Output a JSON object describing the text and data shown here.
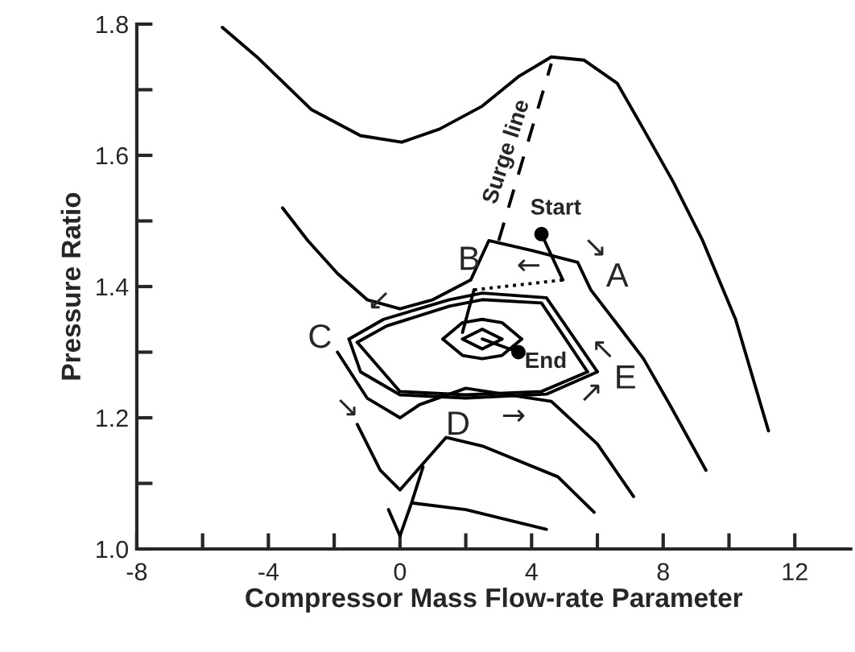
{
  "chart_data": {
    "type": "line",
    "xlabel": "Compressor Mass Flow-rate Parameter",
    "ylabel": "Pressure Ratio",
    "xlim": [
      -8,
      13.7
    ],
    "ylim": [
      1.0,
      1.8
    ],
    "xticks": [
      -8,
      {
        "value": -6,
        "label": null
      },
      -4,
      {
        "value": -2,
        "label": null
      },
      0,
      {
        "value": 2,
        "label": null
      },
      4,
      {
        "value": 6,
        "label": null
      },
      8,
      {
        "value": 10,
        "label": null
      },
      12
    ],
    "yticks": [
      {
        "value": 1.0,
        "label": "1.0"
      },
      {
        "value": 1.1,
        "label": null
      },
      {
        "value": 1.2,
        "label": "1.2"
      },
      {
        "value": 1.3,
        "label": null
      },
      {
        "value": 1.4,
        "label": "1.4"
      },
      {
        "value": 1.5,
        "label": null
      },
      {
        "value": 1.6,
        "label": "1.6"
      },
      {
        "value": 1.7,
        "label": null
      },
      {
        "value": 1.8,
        "label": "1.8"
      }
    ],
    "grid": false,
    "legend": false,
    "marker": "none",
    "series": [
      {
        "color": "#000000",
        "line_style": "solid",
        "x": [
          -5.4,
          -4.35,
          -2.7,
          -1.2,
          0.05,
          1.2,
          2.5,
          3.6,
          4.6,
          5.6,
          6.6,
          7.4,
          8.3,
          9.2,
          10.2,
          11.2
        ],
        "values": [
          1.795,
          1.75,
          1.67,
          1.63,
          1.62,
          1.64,
          1.675,
          1.72,
          1.75,
          1.745,
          1.71,
          1.64,
          1.56,
          1.47,
          1.35,
          1.18
        ]
      },
      {
        "color": "#000000",
        "line_style": "solid",
        "x": [
          -3.57,
          -2.8,
          -1.9,
          -1.0,
          0,
          1.0,
          2.15,
          2.7,
          4.0,
          5.4,
          5.8,
          6.55,
          7.4,
          8.2,
          9.3
        ],
        "values": [
          1.52,
          1.47,
          1.42,
          1.38,
          1.366,
          1.38,
          1.41,
          1.47,
          1.455,
          1.437,
          1.395,
          1.346,
          1.29,
          1.22,
          1.12
        ]
      },
      {
        "color": "#000000",
        "line_style": "solid",
        "x": [
          -1.9,
          -1.0,
          0,
          0.6,
          2.0,
          4.6,
          6.0,
          7.1
        ],
        "values": [
          1.3,
          1.23,
          1.2,
          1.22,
          1.245,
          1.225,
          1.16,
          1.08
        ]
      },
      {
        "color": "#000000",
        "line_style": "solid",
        "x": [
          -1.3,
          -0.6,
          0,
          0.7,
          1.4,
          2.5,
          4.8,
          5.9
        ],
        "values": [
          1.19,
          1.12,
          1.09,
          1.13,
          1.17,
          1.157,
          1.11,
          1.056
        ]
      },
      {
        "color": "#000000",
        "line_style": "solid",
        "x": [
          -0.35,
          0,
          0.35,
          0.7
        ],
        "values": [
          1.06,
          1.02,
          1.07,
          1.125
        ]
      },
      {
        "color": "#000000",
        "line_style": "solid",
        "x": [
          0.4,
          2.0,
          4.45
        ],
        "values": [
          1.07,
          1.06,
          1.03
        ]
      },
      {
        "color": "#000000",
        "line_style": "dashed",
        "x": [
          3.0,
          4.6
        ],
        "values": [
          1.47,
          1.74
        ]
      },
      {
        "color": "#000000",
        "line_style": "solid",
        "x": [
          4.3,
          4.95
        ],
        "values": [
          1.48,
          1.41
        ]
      },
      {
        "color": "#000000",
        "line_style": "dotted",
        "x": [
          2.25,
          4.95
        ],
        "values": [
          1.395,
          1.41
        ]
      },
      {
        "color": "#000000",
        "line_style": "solid",
        "x": [
          1.9,
          2.25
        ],
        "values": [
          1.33,
          1.395
        ]
      },
      {
        "color": "#000000",
        "line_style": "solid",
        "x": [
          -1.55,
          -0.5,
          1.5,
          2.5,
          4.45,
          6.0
        ],
        "values": [
          1.32,
          1.35,
          1.38,
          1.39,
          1.383,
          1.27
        ]
      },
      {
        "color": "#000000",
        "line_style": "solid",
        "x": [
          -1.55,
          -1.2,
          0,
          2.0,
          4.45,
          6.0
        ],
        "values": [
          1.32,
          1.27,
          1.235,
          1.23,
          1.236,
          1.27
        ]
      },
      {
        "color": "#000000",
        "line_style": "solid",
        "x": [
          -1.3,
          -0.4,
          1.5,
          2.5,
          4.3,
          5.7
        ],
        "values": [
          1.315,
          1.34,
          1.37,
          1.38,
          1.375,
          1.27
        ]
      },
      {
        "color": "#000000",
        "line_style": "solid",
        "x": [
          -1.3,
          0,
          2.0,
          4.3,
          5.7
        ],
        "values": [
          1.315,
          1.24,
          1.235,
          1.24,
          1.27
        ]
      },
      {
        "color": "#000000",
        "line_style": "solid",
        "x": [
          1.3,
          1.9,
          2.5,
          3.1,
          3.7
        ],
        "values": [
          1.32,
          1.345,
          1.35,
          1.345,
          1.32
        ]
      },
      {
        "color": "#000000",
        "line_style": "solid",
        "x": [
          1.3,
          1.9,
          2.5,
          3.1,
          3.7
        ],
        "values": [
          1.32,
          1.295,
          1.29,
          1.295,
          1.32
        ]
      },
      {
        "color": "#000000",
        "line_style": "solid",
        "x": [
          1.9,
          2.5,
          3.1
        ],
        "values": [
          1.32,
          1.335,
          1.32
        ]
      },
      {
        "color": "#000000",
        "line_style": "solid",
        "x": [
          1.9,
          2.5,
          3.1
        ],
        "values": [
          1.32,
          1.305,
          1.32
        ]
      },
      {
        "color": "#000000",
        "line_style": "solid",
        "x": [
          2.5,
          3.6
        ],
        "values": [
          1.32,
          1.3
        ]
      },
      {
        "type": "scatter",
        "marker": "circle",
        "color": "#000000",
        "x": [
          4.3,
          3.6
        ],
        "values": [
          1.48,
          1.3
        ]
      }
    ],
    "annotations": [
      {
        "text": "Surge line",
        "x": 3.8,
        "y": 1.605
      },
      {
        "text": "Start",
        "x": 4.3,
        "y": 1.48
      },
      {
        "text": "End",
        "x": 3.6,
        "y": 1.3
      },
      {
        "text": "A",
        "x": 5.8,
        "y": 1.395
      },
      {
        "text": "B",
        "x": 2.25,
        "y": 1.395
      },
      {
        "text": "C",
        "x": -1.55,
        "y": 1.32
      },
      {
        "text": "D",
        "x": 2.0,
        "y": 1.23
      },
      {
        "text": "E",
        "x": 6.0,
        "y": 1.27
      },
      {
        "text": "↙",
        "x": 0,
        "y": 1.366
      },
      {
        "text": "↘",
        "x": 5.4,
        "y": 1.437
      },
      {
        "text": "←",
        "x": 3.55,
        "y": 1.402
      },
      {
        "text": "↖",
        "x": 5.5,
        "y": 1.306
      },
      {
        "text": "↗",
        "x": 5.2,
        "y": 1.252
      },
      {
        "text": "→",
        "x": 3.2,
        "y": 1.233
      },
      {
        "text": "↘",
        "x": -1.0,
        "y": 1.23
      }
    ]
  }
}
